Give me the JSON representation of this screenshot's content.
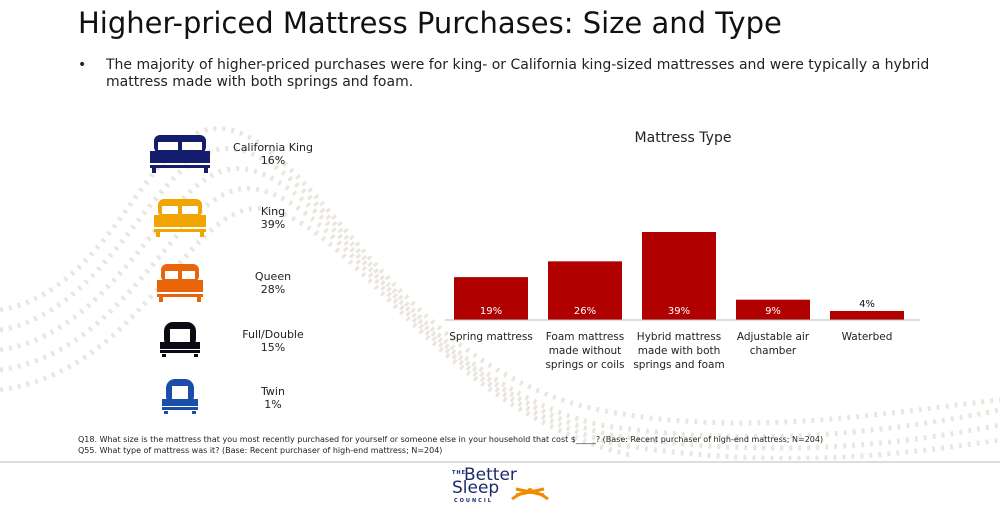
{
  "title": "Higher-priced Mattress Purchases: Size and Type",
  "bullet": "The majority of higher-priced purchases were for king- or California king-sized mattresses and were typically a hybrid mattress made with both springs and foam.",
  "bullet_marker": "•",
  "sizes": [
    {
      "name": "California King",
      "pct": "16%",
      "color": "#141c6e",
      "type": "double"
    },
    {
      "name": "King",
      "pct": "39%",
      "color": "#f0a500",
      "type": "double"
    },
    {
      "name": "Queen",
      "pct": "28%",
      "color": "#e8650a",
      "type": "double"
    },
    {
      "name": "Full/Double",
      "pct": "15%",
      "color": "#0a0a14",
      "type": "single"
    },
    {
      "name": "Twin",
      "pct": "1%",
      "color": "#1a4ea8",
      "type": "single"
    }
  ],
  "chart_data": {
    "type": "bar",
    "title": "Mattress Type",
    "categories": [
      "Spring mattress",
      "Foam mattress made without springs or coils",
      "Hybrid mattress made with both springs and foam",
      "Adjustable air chamber",
      "Waterbed"
    ],
    "category_lines": [
      [
        "Spring mattress"
      ],
      [
        "Foam mattress",
        "made without",
        "springs or coils"
      ],
      [
        "Hybrid mattress",
        "made with both",
        "springs and foam"
      ],
      [
        "Adjustable air",
        "chamber"
      ],
      [
        "Waterbed"
      ]
    ],
    "values": [
      19,
      26,
      39,
      9,
      4
    ],
    "labels": [
      "19%",
      "26%",
      "39%",
      "9%",
      "4%"
    ],
    "ylim": [
      0,
      39
    ],
    "bar_color": "#b00000"
  },
  "footnotes": [
    "Q18. What size is the mattress that you most recently purchased for yourself or someone else in your household that cost $_____? (Base: Recent purchaser of high-end mattress; N=204)",
    "Q55. What type of mattress was it? (Base: Recent purchaser of high-end mattress; N=204)"
  ],
  "logo": {
    "the": "THE",
    "better": "Better",
    "sleep": "Sleep",
    "council": "COUNCIL"
  }
}
